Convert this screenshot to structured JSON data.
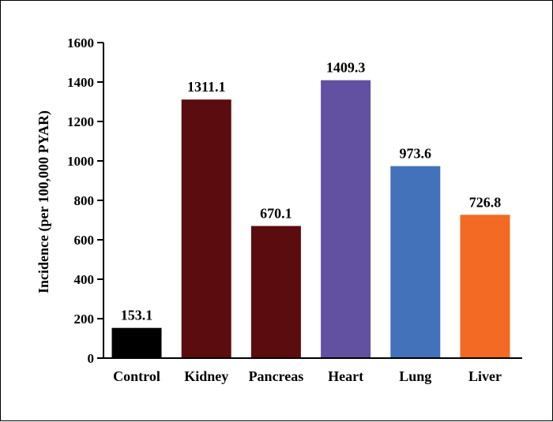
{
  "chart_data": {
    "type": "bar",
    "title": "",
    "xlabel": "",
    "ylabel": "Incidence (per 100,000 PYAR)",
    "ylim": [
      0,
      1600
    ],
    "yticks": [
      0,
      200,
      400,
      600,
      800,
      1000,
      1200,
      1400,
      1600
    ],
    "categories": [
      "Control",
      "Kidney",
      "Pancreas",
      "Heart",
      "Lung",
      "Liver"
    ],
    "values": [
      153.1,
      1311.1,
      670.1,
      1409.3,
      973.6,
      726.8
    ],
    "data_labels": [
      "153.1",
      "1311.1",
      "670.1",
      "1409.3",
      "973.6",
      "726.8"
    ],
    "colors": [
      "#000000",
      "#5a0c0f",
      "#5a0c0f",
      "#6250a1",
      "#4372ba",
      "#f26a24"
    ],
    "grid": false,
    "legend": "none"
  }
}
